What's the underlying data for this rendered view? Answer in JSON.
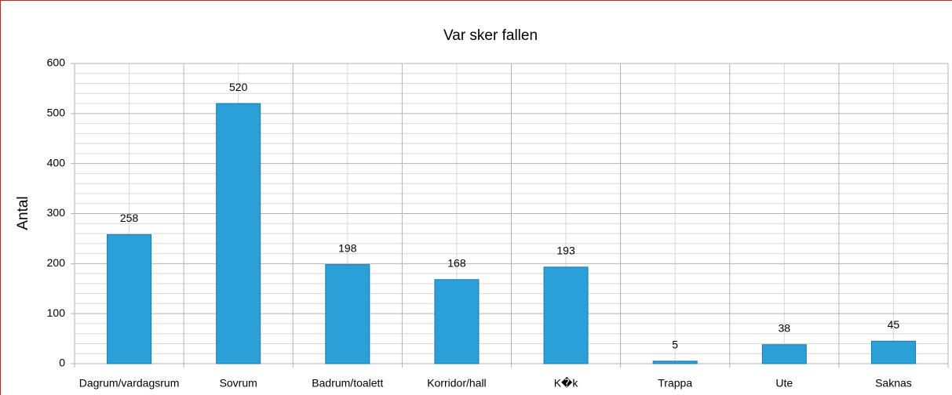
{
  "chart_data": {
    "type": "bar",
    "title": "Var sker fallen",
    "y_label": "Antal",
    "categories": [
      "Dagrum/vardagsrum",
      "Sovrum",
      "Badrum/toalett",
      "Korridor/hall",
      "K�k",
      "Trappa",
      "Ute",
      "Saknas"
    ],
    "values": [
      258,
      520,
      198,
      168,
      193,
      5,
      38,
      45
    ],
    "color": "#2a9fd8",
    "ylim": [
      0,
      600
    ],
    "yticks": [
      0,
      100,
      200,
      300,
      400,
      500,
      600
    ],
    "grid": true
  }
}
